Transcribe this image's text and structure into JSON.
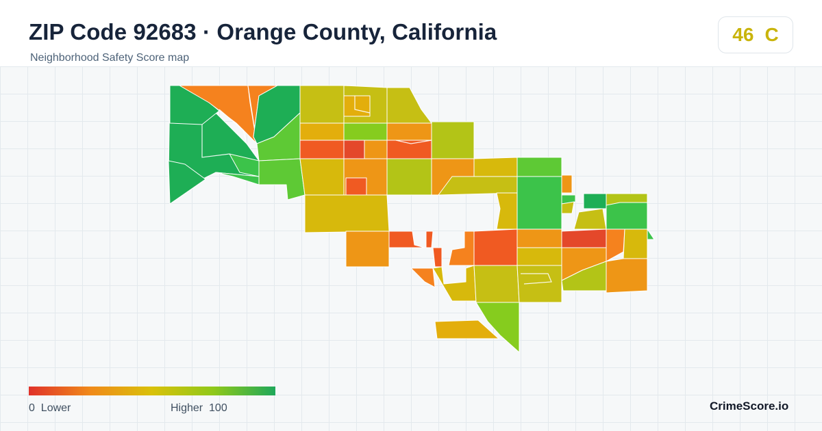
{
  "header": {
    "title": "ZIP Code 92683 · Orange County, California",
    "subtitle": "Neighborhood Safety Score map"
  },
  "score": {
    "value": "46",
    "grade": "C",
    "color": "#c9b40c"
  },
  "legend": {
    "min_label": "0",
    "low_label": "Lower",
    "high_label": "Higher",
    "max_label": "100",
    "gradient": [
      "#e0322a",
      "#f08a1a",
      "#d9c10a",
      "#8fc81a",
      "#1fa85a"
    ]
  },
  "brand": "CrimeScore.io",
  "palette": {
    "red": "#e4482a",
    "red_orange": "#f05a22",
    "orange": "#f5821e",
    "orange_amber": "#ee9616",
    "amber": "#e3ae0c",
    "gold": "#d7b90c",
    "olive": "#c6bf14",
    "yellow_green": "#b3c417",
    "lime": "#86cc1e",
    "light_green": "#5ec935",
    "green": "#3cc34a",
    "deep_green": "#1eae55"
  }
}
